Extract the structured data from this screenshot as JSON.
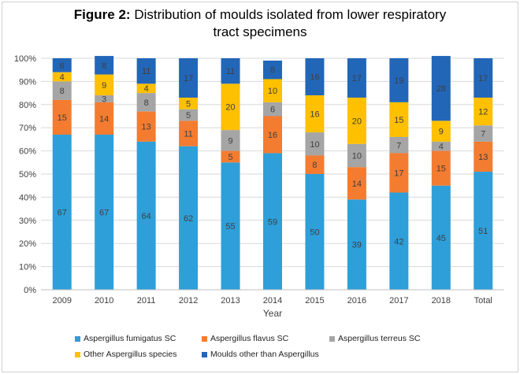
{
  "title": {
    "bold": "Figure 2:",
    "line1": "Distribution of moulds isolated from lower respiratory",
    "line2": "tract specimens"
  },
  "chart_data": {
    "type": "bar",
    "stacked": true,
    "categories": [
      "2009",
      "2010",
      "2011",
      "2012",
      "2013",
      "2014",
      "2015",
      "2016",
      "2017",
      "2018",
      "Total"
    ],
    "xlabel": "Year",
    "ylabel": "",
    "ylim": [
      0,
      100
    ],
    "yticks": [
      "0%",
      "10%",
      "20%",
      "30%",
      "40%",
      "50%",
      "60%",
      "70%",
      "80%",
      "90%",
      "100%"
    ],
    "series": [
      {
        "name": "Aspergillus fumigatus SC",
        "color": "#2e9fd9",
        "values": [
          67,
          67,
          64,
          62,
          55,
          59,
          50,
          39,
          42,
          45,
          51
        ]
      },
      {
        "name": "Aspergillus flavus SC",
        "color": "#f47c30",
        "values": [
          15,
          14,
          13,
          11,
          5,
          16,
          8,
          14,
          17,
          15,
          13
        ]
      },
      {
        "name": "Aspergillus terreus SC",
        "color": "#a5a5a5",
        "values": [
          8,
          3,
          8,
          5,
          9,
          6,
          10,
          10,
          7,
          4,
          7
        ]
      },
      {
        "name": "Other Aspergillus species",
        "color": "#ffc000",
        "values": [
          4,
          9,
          4,
          5,
          20,
          10,
          16,
          20,
          15,
          9,
          12
        ]
      },
      {
        "name": "Moulds other than Aspergillus",
        "color": "#2266b8",
        "values": [
          6,
          8,
          11,
          17,
          11,
          8,
          16,
          17,
          19,
          28,
          17
        ]
      }
    ]
  }
}
